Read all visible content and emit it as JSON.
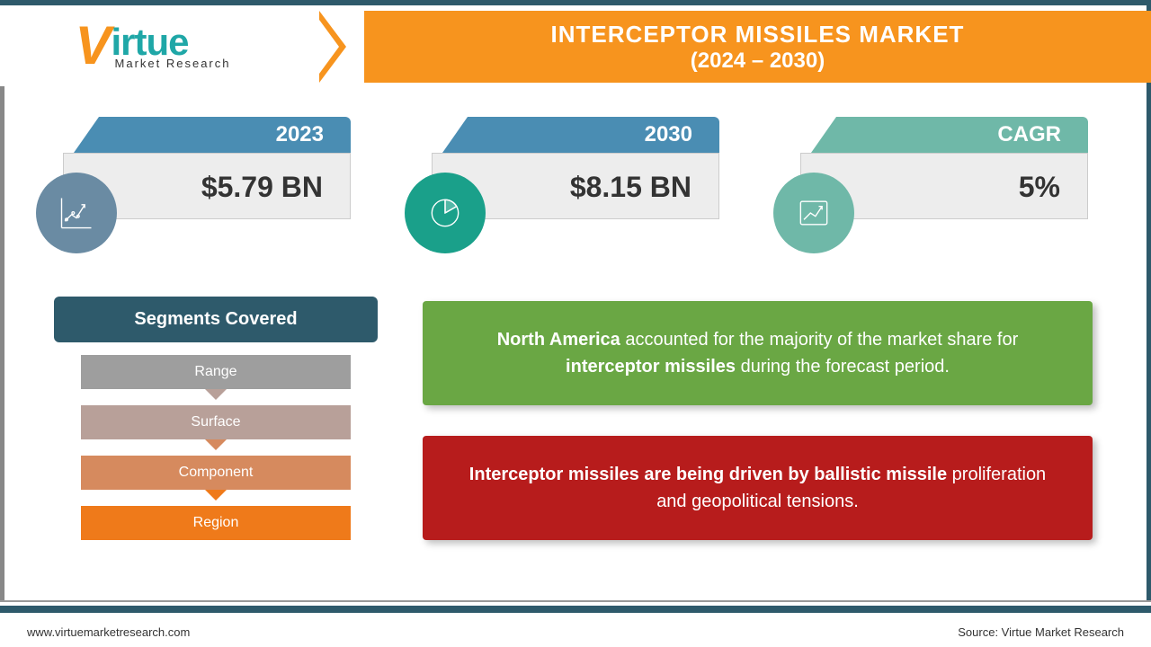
{
  "header": {
    "logo_main": "irtue",
    "logo_v": "V",
    "logo_sub": "Market Research",
    "title_line1": "INTERCEPTOR MISSILES MARKET",
    "title_line2": "(2024 – 2030)"
  },
  "stats": [
    {
      "label": "2023",
      "value": "$5.79 BN",
      "tab_color": "#4a8db3",
      "icon_bg": "#6a8ba3",
      "icon": "line-chart"
    },
    {
      "label": "2030",
      "value": "$8.15 BN",
      "tab_color": "#4a8db3",
      "icon_bg": "#1aa08a",
      "icon": "pie-chart"
    },
    {
      "label": "CAGR",
      "value": "5%",
      "tab_color": "#6fb8a8",
      "icon_bg": "#6fb8a8",
      "icon": "growth-chart"
    }
  ],
  "segments": {
    "header": "Segments Covered",
    "items": [
      {
        "label": "Range",
        "color": "#9e9e9e",
        "arrow": "#b8a099"
      },
      {
        "label": "Surface",
        "color": "#b8a099",
        "arrow": "#d68a5e"
      },
      {
        "label": "Component",
        "color": "#d68a5e",
        "arrow": "#ef7a1a"
      },
      {
        "label": "Region",
        "color": "#ef7a1a",
        "arrow": null
      }
    ]
  },
  "callouts": [
    {
      "bg": "#6aa744",
      "html_parts": [
        "<b>North America</b> accounted for the majority of the market share for <b>interceptor missiles</b> during the forecast period."
      ]
    },
    {
      "bg": "#b71c1c",
      "html_parts": [
        "<b>Interceptor missiles are being driven by ballistic missile</b> proliferation and geopolitical tensions."
      ]
    }
  ],
  "footer": {
    "left": "www.virtuemarketresearch.com",
    "right": "Source: Virtue Market Research"
  },
  "colors": {
    "brand_orange": "#f7941e",
    "brand_teal": "#2e5a6b"
  }
}
